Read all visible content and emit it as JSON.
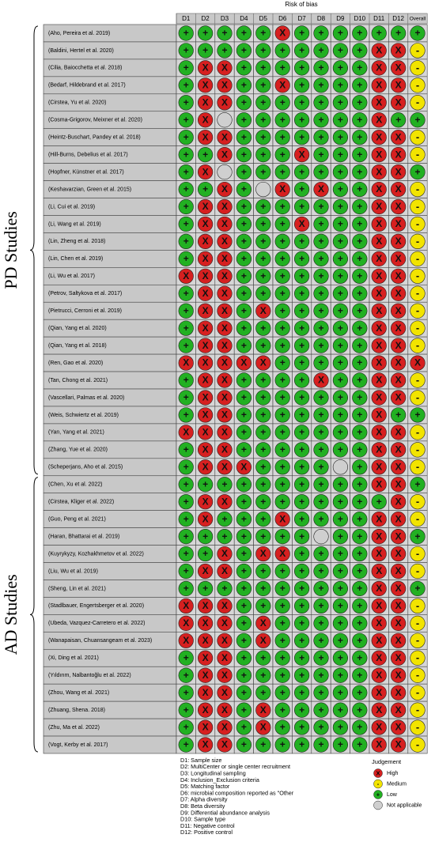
{
  "header": {
    "title": "Risk of bias",
    "columns": [
      "D1",
      "D2",
      "D3",
      "D4",
      "D5",
      "D6",
      "D7",
      "D8",
      "D9",
      "D10",
      "D11",
      "D12",
      "Overall"
    ]
  },
  "groups": [
    {
      "label": "PD Studies",
      "rows": [
        {
          "study": "(Aho, Pereira et al. 2019)",
          "judgements": [
            "+",
            "+",
            "+",
            "+",
            "+",
            "X",
            "+",
            "+",
            "+",
            "+",
            "+",
            "+",
            "+"
          ]
        },
        {
          "study": "(Baldini, Hertel et al. 2020)",
          "judgements": [
            "+",
            "+",
            "+",
            "+",
            "+",
            "+",
            "+",
            "+",
            "+",
            "+",
            "X",
            "X",
            "-"
          ]
        },
        {
          "study": "(Cilia, Baiocchetta et al. 2018)",
          "judgements": [
            "+",
            "X",
            "X",
            "+",
            "+",
            "+",
            "+",
            "+",
            "+",
            "+",
            "X",
            "X",
            "-"
          ]
        },
        {
          "study": "(Bedarf, Hildebrand et al. 2017)",
          "judgements": [
            "+",
            "X",
            "X",
            "+",
            "+",
            "X",
            "+",
            "+",
            "+",
            "+",
            "X",
            "X",
            "-"
          ]
        },
        {
          "study": "(Cirstea, Yu et al. 2020)",
          "judgements": [
            "+",
            "X",
            "X",
            "+",
            "+",
            "+",
            "+",
            "+",
            "+",
            "+",
            "X",
            "X",
            "-"
          ]
        },
        {
          "study": "(Cosma-Grigorov, Meixner et al. 2020)",
          "judgements": [
            "+",
            "X",
            null,
            "+",
            "+",
            "+",
            "+",
            "+",
            "+",
            "+",
            "X",
            "+",
            "+"
          ]
        },
        {
          "study": "(Heintz-Buschart, Pandey et al. 2018)",
          "judgements": [
            "+",
            "X",
            "X",
            "+",
            "+",
            "+",
            "+",
            "+",
            "+",
            "+",
            "X",
            "X",
            "-"
          ]
        },
        {
          "study": "(Hill-Burns, Debelius et al. 2017)",
          "judgements": [
            "+",
            "+",
            "X",
            "+",
            "+",
            "+",
            "X",
            "+",
            "+",
            "+",
            "X",
            "X",
            "-"
          ]
        },
        {
          "study": "(Hopfner, Künstner et al. 2017)",
          "judgements": [
            "+",
            "X",
            null,
            "+",
            "+",
            "+",
            "+",
            "+",
            "+",
            "+",
            "X",
            "X",
            "+"
          ]
        },
        {
          "study": "(Keshavarzian, Green et al. 2015)",
          "judgements": [
            "+",
            "+",
            "X",
            "+",
            null,
            "X",
            "+",
            "X",
            "+",
            "+",
            "X",
            "X",
            "-"
          ]
        },
        {
          "study": "(Li, Cui et al. 2019)",
          "judgements": [
            "+",
            "X",
            "X",
            "+",
            "+",
            "+",
            "+",
            "+",
            "+",
            "+",
            "X",
            "X",
            "-"
          ]
        },
        {
          "study": "(Li, Wang et al. 2019)",
          "judgements": [
            "+",
            "X",
            "X",
            "+",
            "+",
            "+",
            "X",
            "+",
            "+",
            "+",
            "X",
            "X",
            "-"
          ]
        },
        {
          "study": "(Lin, Zheng et al. 2018)",
          "judgements": [
            "+",
            "X",
            "X",
            "+",
            "+",
            "+",
            "+",
            "+",
            "+",
            "+",
            "X",
            "X",
            "-"
          ]
        },
        {
          "study": "(Lin, Chen et al. 2019)",
          "judgements": [
            "+",
            "X",
            "X",
            "+",
            "+",
            "+",
            "+",
            "+",
            "+",
            "+",
            "X",
            "X",
            "-"
          ]
        },
        {
          "study": "(Li, Wu et al. 2017)",
          "judgements": [
            "X",
            "X",
            "X",
            "+",
            "+",
            "+",
            "+",
            "+",
            "+",
            "+",
            "X",
            "X",
            "-"
          ]
        },
        {
          "study": "(Petrov, Saltykova et al. 2017)",
          "judgements": [
            "+",
            "X",
            "X",
            "+",
            "+",
            "+",
            "+",
            "+",
            "+",
            "+",
            "X",
            "X",
            "-"
          ]
        },
        {
          "study": "(Pietrucci, Cerroni et al. 2019)",
          "judgements": [
            "+",
            "X",
            "X",
            "+",
            "X",
            "+",
            "+",
            "+",
            "+",
            "+",
            "X",
            "X",
            "-"
          ]
        },
        {
          "study": "(Qian, Yang et al. 2020)",
          "judgements": [
            "+",
            "X",
            "X",
            "+",
            "+",
            "+",
            "+",
            "+",
            "+",
            "+",
            "X",
            "X",
            "-"
          ]
        },
        {
          "study": "(Qian, Yang et al. 2018)",
          "judgements": [
            "+",
            "X",
            "X",
            "+",
            "+",
            "+",
            "+",
            "+",
            "+",
            "+",
            "X",
            "X",
            "-"
          ]
        },
        {
          "study": "(Ren, Gao et al. 2020)",
          "judgements": [
            "X",
            "X",
            "X",
            "X",
            "X",
            "+",
            "+",
            "+",
            "+",
            "+",
            "X",
            "X",
            "X"
          ]
        },
        {
          "study": "(Tan, Chong et al. 2021)",
          "judgements": [
            "+",
            "X",
            "X",
            "+",
            "+",
            "+",
            "+",
            "X",
            "+",
            "+",
            "X",
            "X",
            "-"
          ]
        },
        {
          "study": "(Vascellari, Palmas et al. 2020)",
          "judgements": [
            "+",
            "X",
            "X",
            "+",
            "+",
            "+",
            "+",
            "+",
            "+",
            "+",
            "X",
            "X",
            "-"
          ]
        },
        {
          "study": "(Weis, Schwiertz et al. 2019)",
          "judgements": [
            "+",
            "X",
            "X",
            "+",
            "+",
            "+",
            "+",
            "+",
            "+",
            "+",
            "X",
            "+",
            "+"
          ]
        },
        {
          "study": "(Yan, Yang et al. 2021)",
          "judgements": [
            "X",
            "X",
            "X",
            "+",
            "+",
            "+",
            "+",
            "+",
            "+",
            "+",
            "X",
            "X",
            "-"
          ]
        },
        {
          "study": "(Zhang, Yue et al. 2020)",
          "judgements": [
            "+",
            "X",
            "X",
            "+",
            "+",
            "+",
            "+",
            "+",
            "+",
            "+",
            "X",
            "X",
            "-"
          ]
        },
        {
          "study": "(Scheperjans, Aho et al. 2015)",
          "judgements": [
            "+",
            "X",
            "X",
            "X",
            "+",
            "+",
            "+",
            "+",
            null,
            "+",
            "X",
            "X",
            "-"
          ]
        }
      ]
    },
    {
      "label": "AD Studies",
      "rows": [
        {
          "study": "(Chen, Xu et al. 2022)",
          "judgements": [
            "+",
            "+",
            "+",
            "+",
            "+",
            "+",
            "+",
            "+",
            "+",
            "+",
            "X",
            "X",
            "+"
          ]
        },
        {
          "study": "(Cirstea, Kliger et al. 2022)",
          "judgements": [
            "+",
            "X",
            "X",
            "+",
            "+",
            "+",
            "+",
            "+",
            "+",
            "+",
            "+",
            "X",
            "-"
          ]
        },
        {
          "study": "(Guo, Peng et al. 2021)",
          "judgements": [
            "+",
            "X",
            "+",
            "+",
            "+",
            "X",
            "+",
            "+",
            "+",
            "+",
            "X",
            "X",
            "-"
          ]
        },
        {
          "study": "(Haran, Bhattarai et al. 2019)",
          "judgements": [
            "+",
            "+",
            "+",
            "+",
            "+",
            "+",
            "+",
            null,
            "+",
            "+",
            "X",
            "X",
            "+"
          ]
        },
        {
          "study": "(Kuyrykyzy, Kozhakhmetov et al. 2022)",
          "judgements": [
            "+",
            "+",
            "X",
            "+",
            "X",
            "X",
            "+",
            "+",
            "+",
            "+",
            "X",
            "X",
            "-"
          ]
        },
        {
          "study": "(Liu, Wu et al. 2019)",
          "judgements": [
            "+",
            "X",
            "X",
            "+",
            "+",
            "+",
            "+",
            "+",
            "+",
            "+",
            "X",
            "X",
            "-"
          ]
        },
        {
          "study": "(Sheng, Lin et al. 2021)",
          "judgements": [
            "+",
            "+",
            "+",
            "+",
            "+",
            "+",
            "+",
            "+",
            "+",
            "+",
            "X",
            "X",
            "+"
          ]
        },
        {
          "study": "(Stadlbauer, Engertsberger et al. 2020)",
          "judgements": [
            "X",
            "X",
            "X",
            "+",
            "+",
            "+",
            "+",
            "+",
            "+",
            "+",
            "X",
            "X",
            "-"
          ]
        },
        {
          "study": "(Ubeda, Vazquez-Carretero et al. 2022)",
          "judgements": [
            "X",
            "X",
            "X",
            "+",
            "X",
            "+",
            "+",
            "+",
            "+",
            "+",
            "X",
            "X",
            "-"
          ]
        },
        {
          "study": "(Wanapaisan, Chuansangeam et al. 2023)",
          "judgements": [
            "X",
            "X",
            "X",
            "+",
            "X",
            "+",
            "+",
            "+",
            "+",
            "+",
            "X",
            "X",
            "-"
          ]
        },
        {
          "study": "(Xi, Ding et al. 2021)",
          "judgements": [
            "+",
            "X",
            "X",
            "+",
            "+",
            "+",
            "+",
            "+",
            "+",
            "+",
            "X",
            "X",
            "-"
          ]
        },
        {
          "study": "(Yıldırım, Nalbantoğlu et al. 2022)",
          "judgements": [
            "+",
            "X",
            "X",
            "+",
            "+",
            "+",
            "+",
            "+",
            "+",
            "+",
            "X",
            "X",
            "-"
          ]
        },
        {
          "study": "(Zhou, Wang et al. 2021)",
          "judgements": [
            "+",
            "X",
            "X",
            "+",
            "+",
            "+",
            "+",
            "+",
            "+",
            "+",
            "X",
            "X",
            "-"
          ]
        },
        {
          "study": "(Zhuang, Shena. 2018)",
          "judgements": [
            "+",
            "X",
            "X",
            "+",
            "X",
            "+",
            "+",
            "+",
            "+",
            "+",
            "X",
            "X",
            "-"
          ]
        },
        {
          "study": "(Zhu, Ma et al. 2022)",
          "judgements": [
            "+",
            "X",
            "X",
            "+",
            "X",
            "+",
            "+",
            "+",
            "+",
            "+",
            "X",
            "X",
            "-"
          ]
        },
        {
          "study": "(Vogt, Kerby et al. 2017)",
          "judgements": [
            "+",
            "X",
            "X",
            "+",
            "+",
            "+",
            "+",
            "+",
            "+",
            "+",
            "X",
            "X",
            "-"
          ]
        }
      ]
    }
  ],
  "domains": [
    "D1: Sample size",
    "D2: MultiCenter or single center recruitment",
    "D3: Longitudinal sampling",
    "D4: Inclusion_Exclusion criteria",
    "D5: Matching factor",
    "D6: microbial composition reported as \"Other",
    "D7: Alpha diversity",
    "D8: Beta diversity",
    "D9: Differential abundance analysis",
    "D10: Sample type",
    "D11: Negative control",
    "D12: Positive control"
  ],
  "legend": {
    "title": "Judgement",
    "items": [
      {
        "label": "High",
        "symbol": "X",
        "color": "#d62020"
      },
      {
        "label": "Medium",
        "symbol": "-",
        "color": "#f2e400"
      },
      {
        "label": "Low",
        "symbol": "+",
        "color": "#22b022"
      },
      {
        "label": "Not applicable",
        "symbol": null,
        "color": "#cfcfcf"
      }
    ]
  }
}
